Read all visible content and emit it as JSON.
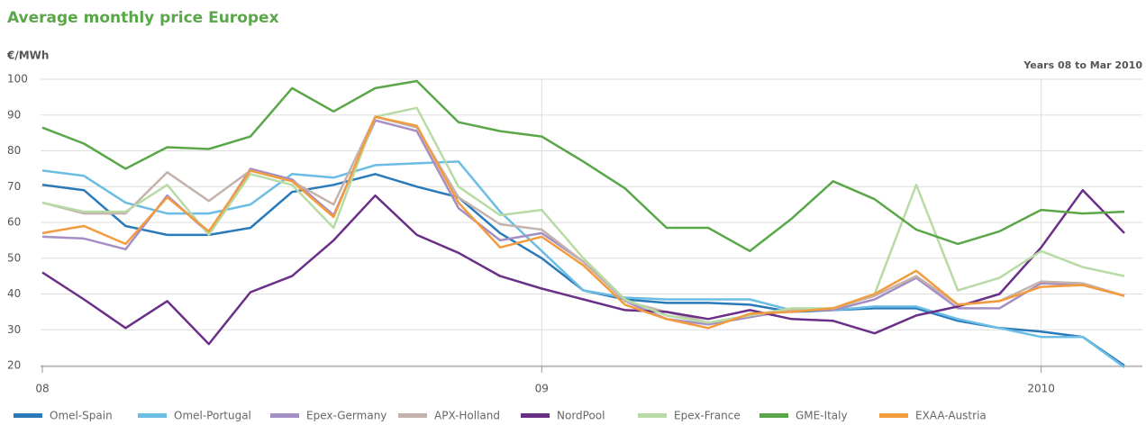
{
  "chart_data": {
    "type": "line",
    "title": "Average monthly price Europex",
    "y_label": "€/MWh",
    "subtitle": "Years 08 to Mar 2010",
    "categories": [
      "08",
      null,
      null,
      null,
      null,
      null,
      null,
      null,
      null,
      null,
      null,
      null,
      "09",
      null,
      null,
      null,
      null,
      null,
      null,
      null,
      null,
      null,
      null,
      null,
      "2010",
      null,
      null
    ],
    "ylim": [
      20,
      100
    ],
    "yticks": [
      20,
      30,
      40,
      50,
      60,
      70,
      80,
      90,
      100
    ],
    "grid": true,
    "series": [
      {
        "name": "Omel-Spain",
        "color": "#2a7ab9",
        "values": [
          70.5,
          69,
          59,
          56.5,
          56.5,
          58.5,
          68.5,
          70.5,
          73.5,
          70,
          67,
          57,
          50,
          41,
          38.5,
          37.5,
          37.5,
          37,
          35,
          35.5,
          36,
          36,
          32.5,
          30.5,
          29.5,
          28,
          20
        ]
      },
      {
        "name": "Omel-Portugal",
        "color": "#6cbde3",
        "values": [
          74.5,
          73,
          65.5,
          62.5,
          62.5,
          65,
          73.5,
          72.5,
          76,
          76.5,
          77,
          63,
          52,
          41,
          39,
          38.5,
          38.5,
          38.5,
          35.5,
          35.5,
          36.5,
          36.5,
          33,
          30.5,
          28,
          28,
          19.5
        ]
      },
      {
        "name": "Epex-Germany",
        "color": "#a48ec4",
        "values": [
          56,
          55.5,
          52.5,
          67.5,
          57,
          75,
          72,
          62,
          88.5,
          85.5,
          64,
          55,
          57,
          49,
          38,
          33,
          31.5,
          33.5,
          35.5,
          35.5,
          38.5,
          44.5,
          36,
          36,
          43,
          42.5,
          39.5
        ]
      },
      {
        "name": "APX-Holland",
        "color": "#c4b3ad",
        "values": [
          65.5,
          62.5,
          62.5,
          74,
          66,
          74.5,
          71.5,
          65,
          89.5,
          86.5,
          67,
          59.5,
          58,
          49,
          38,
          35,
          32,
          34,
          35.5,
          36,
          39.5,
          45,
          37,
          38,
          43.5,
          43,
          39.5
        ]
      },
      {
        "name": "NordPool",
        "color": "#6a3088",
        "values": [
          46,
          38.5,
          30.5,
          38,
          26,
          40.5,
          45,
          55,
          67.5,
          56.5,
          51.5,
          45,
          41.5,
          38.5,
          35.5,
          35,
          33,
          35.5,
          33,
          32.5,
          29,
          34,
          36.5,
          40,
          53,
          69,
          57
        ]
      },
      {
        "name": "Epex-France",
        "color": "#b8dba5",
        "values": [
          65.5,
          63,
          63,
          70.5,
          56.5,
          73.5,
          70.5,
          58.5,
          89.5,
          92,
          70,
          62,
          63.5,
          50,
          38.5,
          34,
          32,
          34,
          36,
          36,
          40,
          70.5,
          41,
          44.5,
          52,
          47.5,
          45
        ]
      },
      {
        "name": "GME-Italy",
        "color": "#5aa749",
        "values": [
          86.5,
          82,
          75,
          81,
          80.5,
          84,
          97.5,
          91,
          97.5,
          99.5,
          88,
          85.5,
          84,
          77,
          69.5,
          58.5,
          58.5,
          52,
          61,
          71.5,
          66.5,
          58,
          54,
          57.5,
          63.5,
          62.5,
          63
        ]
      },
      {
        "name": "EXAA-Austria",
        "color": "#f39b3d",
        "values": [
          57,
          59,
          54,
          67,
          57.5,
          74.5,
          71.5,
          61.5,
          89.5,
          87,
          65.5,
          53,
          56,
          48,
          37,
          33,
          30.5,
          34.5,
          35,
          36,
          40,
          46.5,
          37,
          38,
          42,
          42.5,
          39.5
        ]
      }
    ]
  }
}
